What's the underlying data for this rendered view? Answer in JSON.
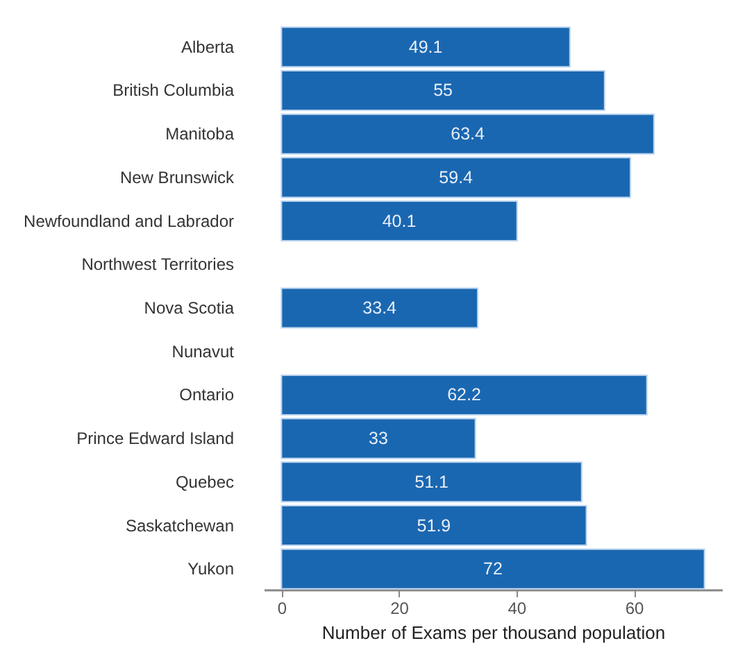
{
  "chart_data": {
    "type": "bar",
    "orientation": "horizontal",
    "categories": [
      "Alberta",
      "British Columbia",
      "Manitoba",
      "New Brunswick",
      "Newfoundland and Labrador",
      "Northwest Territories",
      "Nova Scotia",
      "Nunavut",
      "Ontario",
      "Prince Edward Island",
      "Quebec",
      "Saskatchewan",
      "Yukon"
    ],
    "values": [
      49.1,
      55,
      63.4,
      59.4,
      40.1,
      null,
      33.4,
      null,
      62.2,
      33,
      51.1,
      51.9,
      72
    ],
    "color": "#1a67b1",
    "xlabel": "Number of Exams per thousand population",
    "xlim": [
      -3,
      75
    ],
    "xticks": [
      0,
      20,
      40,
      60
    ],
    "data_labels": true
  }
}
